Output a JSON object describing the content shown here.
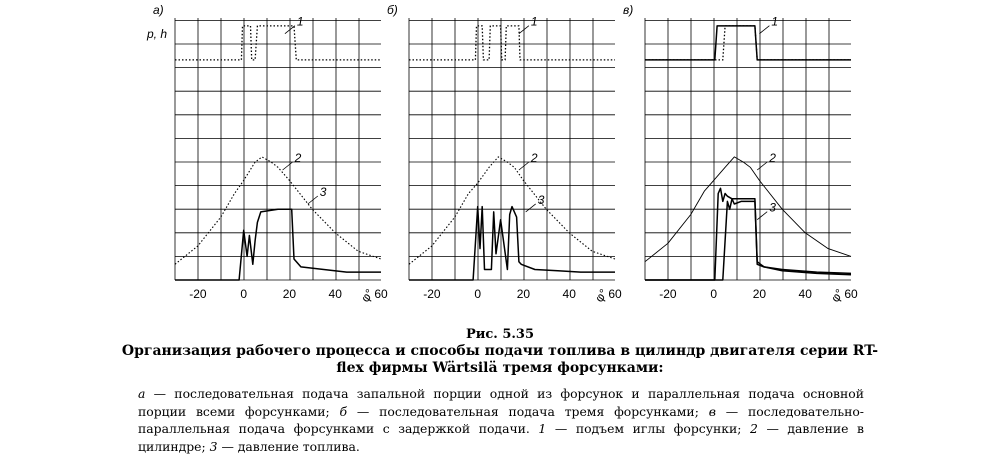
{
  "axis_label": "p, h",
  "x_axis_unit": "φ°",
  "panels": [
    {
      "letter": "а)",
      "x_ticks": [
        "-20",
        "0",
        "20",
        "40",
        "60"
      ],
      "curve_labels": [
        "1",
        "2",
        "3"
      ]
    },
    {
      "letter": "б)",
      "x_ticks": [
        "-20",
        "0",
        "20",
        "40",
        "60"
      ],
      "curve_labels": [
        "1",
        "2",
        "3"
      ]
    },
    {
      "letter": "в)",
      "x_ticks": [
        "-20",
        "0",
        "20",
        "40",
        "60"
      ],
      "curve_labels": [
        "1",
        "2",
        "3"
      ]
    }
  ],
  "caption": {
    "number": "Рис. 5.35",
    "title": "Организация рабочего процесса и способы подачи топлива в цилиндр двигателя серии RT-flex фирмы Wärtsilä тремя форсунками:"
  },
  "legend": [
    {
      "key": "а",
      "text": " — последовательная подача запальной порции одной из форсунок и параллельная подача основной порции всеми форсунками; "
    },
    {
      "key": "б",
      "text": " — последовательная подача тремя форсунками; "
    },
    {
      "key": "в",
      "text": " — последовательно-параллельная подача форсунками с задержкой подачи. "
    },
    {
      "key": "1",
      "text": " — подъем иглы форсунки; "
    },
    {
      "key": "2",
      "text": " — давление в цилиндре; "
    },
    {
      "key": "3",
      "text": " — давление топлива."
    }
  ],
  "chart_data": [
    {
      "type": "line",
      "title": "а)",
      "xlabel": "φ°",
      "ylabel": "p, h",
      "xlim": [
        -30,
        60
      ],
      "x_ticks": [
        -20,
        0,
        20,
        40,
        60
      ],
      "grid": true,
      "series": [
        {
          "name": "1 — подъем иглы форсунки",
          "style": "dotted",
          "x": [
            -30,
            -1,
            -0.5,
            3,
            3.5,
            5,
            6,
            22,
            23,
            60
          ],
          "y": [
            0.84,
            0.84,
            0.97,
            0.97,
            0.84,
            0.84,
            0.97,
            0.97,
            0.84,
            0.84
          ]
        },
        {
          "name": "2 — давление в цилиндре",
          "style": "dash-dot",
          "x": [
            -30,
            -20,
            -10,
            -4,
            0,
            5,
            8,
            12,
            15,
            20,
            30,
            40,
            50,
            60
          ],
          "y": [
            0.06,
            0.13,
            0.24,
            0.33,
            0.38,
            0.45,
            0.47,
            0.45,
            0.43,
            0.38,
            0.27,
            0.18,
            0.11,
            0.08
          ]
        },
        {
          "name": "3 — давление топлива",
          "style": "solid",
          "x": [
            -30,
            -2,
            0,
            1.5,
            2.5,
            4,
            5,
            6,
            7.5,
            15,
            21,
            22,
            25,
            35,
            45,
            60
          ],
          "y": [
            0,
            0,
            0.19,
            0.09,
            0.17,
            0.06,
            0.15,
            0.22,
            0.26,
            0.27,
            0.27,
            0.08,
            0.05,
            0.04,
            0.03,
            0.03
          ]
        }
      ]
    },
    {
      "type": "line",
      "title": "б)",
      "xlabel": "φ°",
      "ylabel": "p, h",
      "xlim": [
        -30,
        60
      ],
      "x_ticks": [
        -20,
        0,
        20,
        40,
        60
      ],
      "grid": true,
      "series": [
        {
          "name": "1 — подъем иглы форсунки",
          "style": "dotted",
          "x": [
            -30,
            -1,
            -0.5,
            2,
            2.5,
            5,
            5.5,
            10,
            10.5,
            12,
            12.5,
            18,
            18.5,
            60
          ],
          "y": [
            0.84,
            0.84,
            0.97,
            0.97,
            0.84,
            0.84,
            0.97,
            0.97,
            0.84,
            0.84,
            0.97,
            0.97,
            0.84,
            0.84
          ]
        },
        {
          "name": "2 — давление в цилиндре",
          "style": "dash-dot",
          "x": [
            -30,
            -20,
            -10,
            -4,
            0,
            5,
            9,
            13,
            16,
            20,
            30,
            40,
            50,
            60
          ],
          "y": [
            0.06,
            0.13,
            0.24,
            0.33,
            0.37,
            0.43,
            0.47,
            0.45,
            0.43,
            0.38,
            0.27,
            0.18,
            0.11,
            0.08
          ]
        },
        {
          "name": "3 — давление топлива",
          "style": "solid",
          "x": [
            -30,
            -2,
            0,
            1,
            2,
            3,
            6,
            7,
            8,
            10,
            13,
            14,
            15,
            17,
            18,
            19,
            25,
            35,
            45,
            60
          ],
          "y": [
            0,
            0,
            0.28,
            0.12,
            0.28,
            0.04,
            0.04,
            0.26,
            0.1,
            0.23,
            0.04,
            0.25,
            0.28,
            0.24,
            0.07,
            0.06,
            0.04,
            0.035,
            0.03,
            0.03
          ]
        }
      ]
    },
    {
      "type": "line",
      "title": "в)",
      "xlabel": "φ°",
      "ylabel": "p, h",
      "xlim": [
        -30,
        60
      ],
      "x_ticks": [
        -20,
        0,
        20,
        40,
        60
      ],
      "grid": true,
      "series": [
        {
          "name": "1 — подъем иглы форсунки (форсунки 1)",
          "style": "solid",
          "x": [
            -30,
            0.5,
            1.5,
            18,
            19,
            60
          ],
          "y": [
            0.84,
            0.84,
            0.97,
            0.97,
            0.84,
            0.84
          ]
        },
        {
          "name": "1 — подъем иглы форсунки (форсунки 2, 3)",
          "style": "dotted",
          "x": [
            -30,
            4,
            5,
            18,
            19,
            60
          ],
          "y": [
            0.84,
            0.84,
            0.97,
            0.97,
            0.84,
            0.84
          ]
        },
        {
          "name": "2 — давление в цилиндре",
          "style": "solid-thin",
          "x": [
            -30,
            -20,
            -10,
            -4,
            0,
            5,
            9,
            13,
            16,
            20,
            30,
            40,
            50,
            60
          ],
          "y": [
            0.07,
            0.14,
            0.25,
            0.34,
            0.38,
            0.43,
            0.47,
            0.45,
            0.43,
            0.38,
            0.27,
            0.18,
            0.12,
            0.09
          ]
        },
        {
          "name": "3 — давление топлива (форсунка 1)",
          "style": "solid",
          "x": [
            -30,
            0.5,
            2,
            3,
            4,
            5,
            6,
            8,
            12,
            18,
            19,
            22,
            30,
            45,
            60
          ],
          "y": [
            0,
            0,
            0.33,
            0.35,
            0.3,
            0.33,
            0.32,
            0.31,
            0.31,
            0.31,
            0.07,
            0.05,
            0.04,
            0.03,
            0.025
          ]
        },
        {
          "name": "3 — давление топлива (форсунки 2, 3)",
          "style": "solid",
          "x": [
            -30,
            4,
            6,
            7,
            8,
            9,
            12,
            18,
            19,
            22,
            30,
            45,
            60
          ],
          "y": [
            0,
            0,
            0.3,
            0.27,
            0.31,
            0.29,
            0.3,
            0.3,
            0.06,
            0.05,
            0.035,
            0.025,
            0.02
          ]
        }
      ]
    }
  ]
}
